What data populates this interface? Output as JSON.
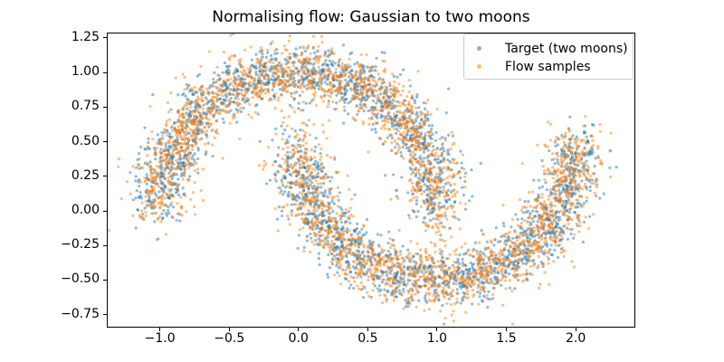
{
  "chart_data": {
    "type": "scatter",
    "title": "Normalising flow: Gaussian to two moons",
    "xlabel": "",
    "ylabel": "",
    "xlim": [
      -1.383,
      2.43
    ],
    "ylim": [
      -0.844,
      1.289
    ],
    "x_ticks": [
      -1.0,
      -0.5,
      0.0,
      0.5,
      1.0,
      1.5,
      2.0
    ],
    "x_tick_labels": [
      "−1.0",
      "−0.5",
      "0.0",
      "0.5",
      "1.0",
      "1.5",
      "2.0"
    ],
    "y_ticks": [
      1.25,
      1.0,
      0.75,
      0.5,
      0.25,
      0.0,
      -0.25,
      -0.5,
      -0.75
    ],
    "y_tick_labels": [
      "1.25",
      "1.00",
      "0.75",
      "0.50",
      "0.25",
      "0.00",
      "−0.25",
      "−0.50",
      "−0.75"
    ],
    "grid": false,
    "legend_position": "upper right",
    "series": [
      {
        "name": "Target (two moons)",
        "color": "#1f77b4",
        "alpha": 0.5,
        "marker_radius_px": 1.6,
        "n_points": 3000,
        "distribution": "two_moons",
        "noise": 0.1,
        "render_seed": 20,
        "extra_noise_fraction": 0.004,
        "extra_noise": 0.22
      },
      {
        "name": "Flow samples",
        "color": "#ff7f0e",
        "alpha": 0.5,
        "marker_radius_px": 1.6,
        "n_points": 3000,
        "distribution": "two_moons",
        "noise": 0.105,
        "render_seed": 77,
        "extra_noise_fraction": 0.006,
        "extra_noise": 0.26,
        "bridge": {
          "n": 36,
          "x": [
            0.88,
            1.06
          ],
          "y": [
            -0.42,
            0.08
          ]
        }
      }
    ],
    "axes": {
      "spine_color": "#000000",
      "tick_color": "#000000",
      "background": "#ffffff",
      "legend_edge_color": "#cccccc",
      "legend_face_color": "rgba(255,255,255,0.8)"
    }
  }
}
